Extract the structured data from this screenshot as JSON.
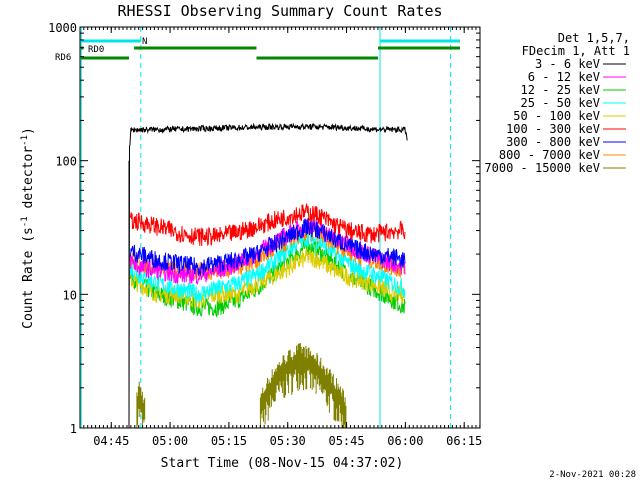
{
  "chart_data": {
    "type": "line",
    "title": "RHESSI Observing Summary Count Rates",
    "xlabel": "Start Time (08-Nov-15 04:37:02)",
    "ylabel_main": "Count Rate (s",
    "ylabel_sup1": "-1",
    "ylabel_mid": " detector",
    "ylabel_sup2": "-1",
    "ylabel_end": ")",
    "x_unit": "minutes since 04:37:02",
    "xlim": [
      0,
      102
    ],
    "ylim": [
      1,
      1000
    ],
    "yscale": "log",
    "x_ticks": [
      {
        "x": 7.97,
        "label": "04:45"
      },
      {
        "x": 22.97,
        "label": "05:00"
      },
      {
        "x": 37.97,
        "label": "05:15"
      },
      {
        "x": 52.97,
        "label": "05:30"
      },
      {
        "x": 67.97,
        "label": "05:45"
      },
      {
        "x": 82.97,
        "label": "06:00"
      },
      {
        "x": 97.97,
        "label": "06:15"
      }
    ],
    "y_ticks": [
      {
        "y": 1,
        "label": "1"
      },
      {
        "y": 10,
        "label": "10"
      },
      {
        "y": 100,
        "label": "100"
      },
      {
        "y": 1000,
        "label": "1000"
      }
    ],
    "legend_header": [
      "Det 1,5,7,",
      "FDecim 1, Att 1"
    ],
    "series": [
      {
        "name": "3 - 6 keV",
        "color": "#000000",
        "data": [
          [
            12.5,
            1.0
          ],
          [
            12.6,
            120
          ],
          [
            13,
            170
          ],
          [
            25,
            172
          ],
          [
            35,
            175
          ],
          [
            45,
            178
          ],
          [
            55,
            180
          ],
          [
            65,
            178
          ],
          [
            75,
            172
          ],
          [
            83,
            170
          ],
          [
            83.5,
            140
          ]
        ]
      },
      {
        "name": "6 - 12 keV",
        "color": "#ff00ff",
        "data": [
          [
            12.8,
            18
          ],
          [
            15,
            16
          ],
          [
            20,
            15
          ],
          [
            25,
            14
          ],
          [
            30,
            14
          ],
          [
            35,
            15
          ],
          [
            40,
            17
          ],
          [
            45,
            20
          ],
          [
            50,
            25
          ],
          [
            55,
            30
          ],
          [
            58,
            33
          ],
          [
            61,
            31
          ],
          [
            65,
            26
          ],
          [
            70,
            22
          ],
          [
            75,
            19
          ],
          [
            80,
            17
          ],
          [
            83,
            16
          ]
        ]
      },
      {
        "name": "12 - 25 keV",
        "color": "#00cc00",
        "data": [
          [
            12.8,
            14
          ],
          [
            15,
            12
          ],
          [
            20,
            10
          ],
          [
            25,
            9
          ],
          [
            30,
            8
          ],
          [
            35,
            8
          ],
          [
            40,
            9
          ],
          [
            45,
            11
          ],
          [
            50,
            15
          ],
          [
            55,
            20
          ],
          [
            58,
            23
          ],
          [
            61,
            21
          ],
          [
            65,
            17
          ],
          [
            70,
            13
          ],
          [
            75,
            11
          ],
          [
            80,
            9
          ],
          [
            83,
            8
          ]
        ]
      },
      {
        "name": "25 - 50 keV",
        "color": "#00ffff",
        "data": [
          [
            12.8,
            16
          ],
          [
            15,
            14
          ],
          [
            20,
            12
          ],
          [
            25,
            11
          ],
          [
            30,
            10
          ],
          [
            35,
            11
          ],
          [
            40,
            12
          ],
          [
            45,
            14
          ],
          [
            50,
            18
          ],
          [
            55,
            24
          ],
          [
            58,
            27
          ],
          [
            61,
            25
          ],
          [
            65,
            20
          ],
          [
            70,
            16
          ],
          [
            75,
            14
          ],
          [
            80,
            12
          ],
          [
            83,
            11
          ]
        ]
      },
      {
        "name": "50 - 100 keV",
        "color": "#ddcc00",
        "data": [
          [
            12.8,
            13
          ],
          [
            15,
            12
          ],
          [
            20,
            10
          ],
          [
            25,
            10
          ],
          [
            30,
            9
          ],
          [
            35,
            10
          ],
          [
            40,
            10
          ],
          [
            45,
            12
          ],
          [
            50,
            14
          ],
          [
            55,
            17
          ],
          [
            58,
            19
          ],
          [
            61,
            18
          ],
          [
            65,
            15
          ],
          [
            70,
            13
          ],
          [
            75,
            12
          ],
          [
            80,
            10
          ],
          [
            83,
            10
          ]
        ]
      },
      {
        "name": "100 - 300 keV",
        "color": "#ff0000",
        "data": [
          [
            12.8,
            35
          ],
          [
            15,
            35
          ],
          [
            20,
            32
          ],
          [
            25,
            29
          ],
          [
            30,
            27
          ],
          [
            35,
            27
          ],
          [
            40,
            29
          ],
          [
            45,
            32
          ],
          [
            50,
            36
          ],
          [
            55,
            40
          ],
          [
            58,
            41
          ],
          [
            61,
            39
          ],
          [
            65,
            33
          ],
          [
            70,
            29
          ],
          [
            75,
            28
          ],
          [
            80,
            30
          ],
          [
            83,
            30
          ]
        ]
      },
      {
        "name": "300 - 800 keV",
        "color": "#0000ff",
        "data": [
          [
            12.8,
            21
          ],
          [
            15,
            20
          ],
          [
            20,
            18
          ],
          [
            25,
            17
          ],
          [
            30,
            16
          ],
          [
            35,
            17
          ],
          [
            40,
            18
          ],
          [
            45,
            20
          ],
          [
            50,
            24
          ],
          [
            55,
            29
          ],
          [
            58,
            32
          ],
          [
            61,
            30
          ],
          [
            65,
            26
          ],
          [
            70,
            22
          ],
          [
            75,
            20
          ],
          [
            80,
            19
          ],
          [
            83,
            18
          ]
        ]
      },
      {
        "name": "800 - 7000 keV",
        "color": "#ff8800",
        "data": [
          [
            12.8,
            18
          ],
          [
            15,
            17
          ],
          [
            20,
            16
          ],
          [
            25,
            15
          ],
          [
            30,
            15
          ],
          [
            35,
            15
          ],
          [
            40,
            16
          ],
          [
            45,
            18
          ],
          [
            50,
            22
          ],
          [
            55,
            27
          ],
          [
            58,
            29
          ],
          [
            61,
            28
          ],
          [
            65,
            24
          ],
          [
            70,
            20
          ],
          [
            75,
            18
          ],
          [
            80,
            16
          ],
          [
            83,
            15
          ]
        ]
      },
      {
        "name": "7000 - 15000 keV",
        "color": "#808000",
        "data": [
          [
            14.5,
            1.5
          ],
          [
            15,
            1.9
          ],
          [
            16.5,
            1.4
          ],
          [
            46,
            1.5
          ],
          [
            48,
            2.0
          ],
          [
            50,
            2.5
          ],
          [
            52,
            2.9
          ],
          [
            54,
            3.2
          ],
          [
            56,
            3.5
          ],
          [
            58,
            3.3
          ],
          [
            60,
            3.0
          ],
          [
            62,
            2.6
          ],
          [
            64,
            2.2
          ],
          [
            66,
            1.8
          ],
          [
            68,
            1.4
          ]
        ]
      }
    ],
    "flag_bars": {
      "N_label": "N",
      "RD0_label": "RD0",
      "RD6_label": "RD6"
    },
    "vertical_lines": [
      0.3,
      15.5,
      76.5,
      94.5
    ],
    "timestamp": "2-Nov-2021 00:28"
  }
}
